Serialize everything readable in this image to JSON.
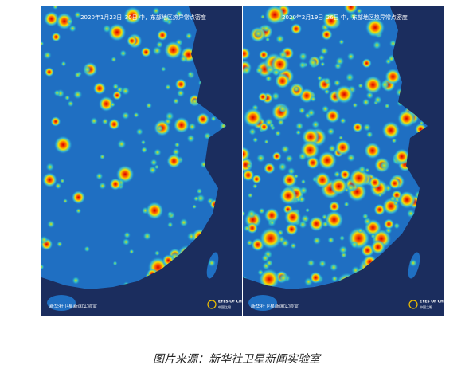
{
  "panels": [
    {
      "title": "2020年1月23日–30日 中，东部地区热异常点密度",
      "credit": "新华社卫星新闻实验室",
      "logo_en": "EYES OF CHINA",
      "logo_zh": "中国之眼"
    },
    {
      "title": "2020年2月19日–26日 中，东部地区热异常点密度",
      "credit": "新华社卫星新闻实验室",
      "logo_en": "EYES OF CHINA",
      "logo_zh": "中国之眼"
    }
  ],
  "caption": "图片来源：新华社卫星新闻实验室"
}
